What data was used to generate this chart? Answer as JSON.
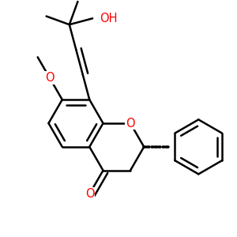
{
  "bg": "#ffffff",
  "bc": "#000000",
  "rc": "#ff0000",
  "lw": 1.8,
  "dbo": 0.022,
  "L": 0.115,
  "figsize": [
    3.0,
    3.0
  ],
  "dpi": 100,
  "xlim": [
    0.0,
    1.0
  ],
  "ylim": [
    0.0,
    1.0
  ]
}
